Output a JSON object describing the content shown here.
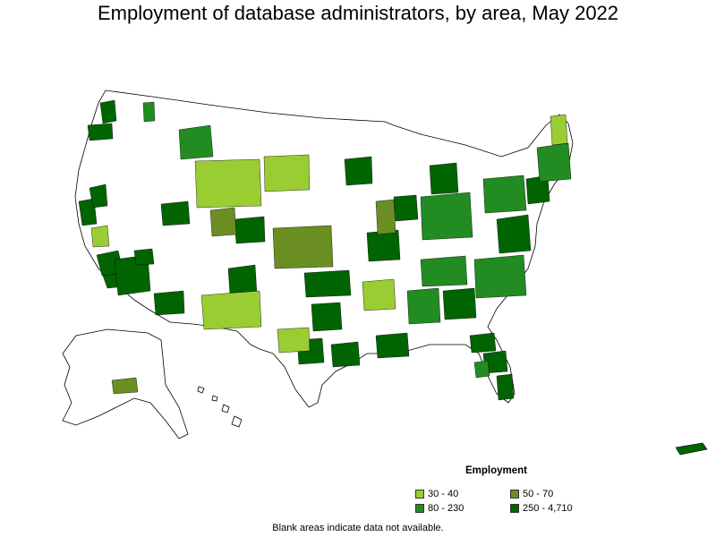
{
  "title": "Employment of database administrators, by area, May 2022",
  "legend": {
    "title": "Employment",
    "items": [
      {
        "label": "30 - 40",
        "color": "#9acd32"
      },
      {
        "label": "50 - 70",
        "color": "#6b8e23"
      },
      {
        "label": "80 - 230",
        "color": "#228b22"
      },
      {
        "label": "250 - 4,710",
        "color": "#006400"
      }
    ]
  },
  "note": "Blank areas indicate data not available.",
  "colors": {
    "outline": "#000000",
    "no_data": "#ffffff"
  }
}
